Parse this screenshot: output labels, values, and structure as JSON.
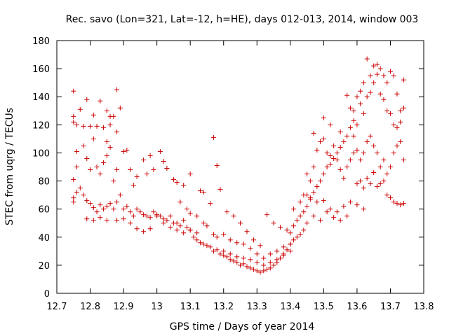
{
  "chart_data": {
    "type": "scatter",
    "title": "Rec. savo (Lon=321, Lat=-12, h=HE), days 012-013, 2014, window 003",
    "xlabel": "GPS time / Days of year 2014",
    "ylabel": "STEC from uqrg / TECUs",
    "xlim": [
      12.7,
      13.8
    ],
    "ylim": [
      0,
      180
    ],
    "x_ticks": [
      "12.7",
      "12.8",
      "12.9",
      "13",
      "13.1",
      "13.2",
      "13.3",
      "13.4",
      "13.5",
      "13.6",
      "13.7",
      "13.8"
    ],
    "y_ticks": [
      "0",
      "20",
      "40",
      "60",
      "80",
      "100",
      "120",
      "140",
      "160",
      "180"
    ],
    "grid": false,
    "marker": "plus",
    "marker_color": "#cc0000",
    "series": [
      {
        "name": "STEC",
        "points": [
          [
            12.75,
            144
          ],
          [
            12.75,
            126
          ],
          [
            12.75,
            122
          ],
          [
            12.76,
            120
          ],
          [
            12.76,
            101
          ],
          [
            12.77,
            131
          ],
          [
            12.78,
            119
          ],
          [
            12.79,
            138
          ],
          [
            12.8,
            119
          ],
          [
            12.81,
            127
          ],
          [
            12.82,
            119
          ],
          [
            12.83,
            137
          ],
          [
            12.84,
            118
          ],
          [
            12.85,
            130
          ],
          [
            12.86,
            120
          ],
          [
            12.87,
            126
          ],
          [
            12.88,
            145
          ],
          [
            12.88,
            115
          ],
          [
            12.89,
            132
          ],
          [
            12.86,
            126
          ],
          [
            12.85,
            108
          ],
          [
            12.75,
            81
          ],
          [
            12.76,
            90
          ],
          [
            12.78,
            105
          ],
          [
            12.79,
            96
          ],
          [
            12.8,
            88
          ],
          [
            12.81,
            110
          ],
          [
            12.82,
            90
          ],
          [
            12.83,
            85
          ],
          [
            12.84,
            93
          ],
          [
            12.85,
            98
          ],
          [
            12.86,
            104
          ],
          [
            12.87,
            80
          ],
          [
            12.88,
            88
          ],
          [
            12.9,
            101
          ],
          [
            12.91,
            102
          ],
          [
            12.92,
            88
          ],
          [
            12.93,
            77
          ],
          [
            12.94,
            83
          ],
          [
            12.96,
            95
          ],
          [
            12.97,
            85
          ],
          [
            12.98,
            98
          ],
          [
            12.99,
            88
          ],
          [
            13.01,
            101
          ],
          [
            13.02,
            94
          ],
          [
            13.03,
            89
          ],
          [
            13.05,
            81
          ],
          [
            13.06,
            79
          ],
          [
            13.08,
            77
          ],
          [
            13.1,
            85
          ],
          [
            13.13,
            73
          ],
          [
            12.75,
            68
          ],
          [
            12.75,
            65
          ],
          [
            12.76,
            72
          ],
          [
            12.77,
            75
          ],
          [
            12.78,
            70
          ],
          [
            12.79,
            66
          ],
          [
            12.8,
            64
          ],
          [
            12.81,
            61
          ],
          [
            12.82,
            58
          ],
          [
            12.83,
            63
          ],
          [
            12.84,
            60
          ],
          [
            12.85,
            62
          ],
          [
            12.86,
            64
          ],
          [
            12.87,
            60
          ],
          [
            12.88,
            65
          ],
          [
            12.89,
            70
          ],
          [
            12.9,
            60
          ],
          [
            12.91,
            62
          ],
          [
            12.92,
            58
          ],
          [
            12.93,
            55
          ],
          [
            12.94,
            60
          ],
          [
            12.95,
            58
          ],
          [
            12.96,
            56
          ],
          [
            12.97,
            55
          ],
          [
            12.98,
            54
          ],
          [
            12.99,
            58
          ],
          [
            13.0,
            56
          ],
          [
            13.01,
            55
          ],
          [
            13.02,
            53
          ],
          [
            13.03,
            52
          ],
          [
            13.04,
            55
          ],
          [
            13.05,
            50
          ],
          [
            13.06,
            50
          ],
          [
            13.07,
            48
          ],
          [
            13.08,
            52
          ],
          [
            13.09,
            47
          ],
          [
            13.1,
            45
          ],
          [
            12.79,
            53
          ],
          [
            12.81,
            52
          ],
          [
            12.83,
            54
          ],
          [
            12.85,
            52
          ],
          [
            12.88,
            52
          ],
          [
            12.9,
            53
          ],
          [
            12.92,
            50
          ],
          [
            12.94,
            46
          ],
          [
            12.96,
            44
          ],
          [
            12.98,
            46
          ],
          [
            13.0,
            55
          ],
          [
            13.02,
            50
          ],
          [
            13.04,
            47
          ],
          [
            13.06,
            45
          ],
          [
            13.08,
            43
          ],
          [
            13.1,
            45
          ],
          [
            13.12,
            43
          ],
          [
            13.07,
            65
          ],
          [
            13.09,
            60
          ],
          [
            13.1,
            57
          ],
          [
            13.12,
            55
          ],
          [
            13.14,
            50
          ],
          [
            13.15,
            48
          ],
          [
            13.17,
            42
          ],
          [
            13.18,
            40
          ],
          [
            13.2,
            42
          ],
          [
            13.22,
            38
          ],
          [
            13.24,
            36
          ],
          [
            13.26,
            35
          ],
          [
            13.28,
            32
          ],
          [
            13.3,
            28
          ],
          [
            13.32,
            25
          ],
          [
            13.34,
            28
          ],
          [
            13.36,
            30
          ],
          [
            13.38,
            33
          ],
          [
            13.4,
            35
          ],
          [
            13.11,
            40
          ],
          [
            13.12,
            38
          ],
          [
            13.13,
            36
          ],
          [
            13.14,
            35
          ],
          [
            13.15,
            34
          ],
          [
            13.16,
            33
          ],
          [
            13.17,
            30
          ],
          [
            13.18,
            31
          ],
          [
            13.19,
            28
          ],
          [
            13.2,
            27
          ],
          [
            13.21,
            26
          ],
          [
            13.22,
            24
          ],
          [
            13.23,
            23
          ],
          [
            13.24,
            22
          ],
          [
            13.25,
            20
          ],
          [
            13.26,
            21
          ],
          [
            13.27,
            19
          ],
          [
            13.28,
            18
          ],
          [
            13.29,
            17
          ],
          [
            13.3,
            16
          ],
          [
            13.31,
            15
          ],
          [
            13.32,
            16
          ],
          [
            13.33,
            17
          ],
          [
            13.34,
            18
          ],
          [
            13.35,
            20
          ],
          [
            13.36,
            22
          ],
          [
            13.37,
            25
          ],
          [
            13.38,
            28
          ],
          [
            13.39,
            31
          ],
          [
            13.4,
            35
          ],
          [
            13.41,
            38
          ],
          [
            13.42,
            40
          ],
          [
            13.43,
            42
          ],
          [
            13.44,
            45
          ],
          [
            13.14,
            72
          ],
          [
            13.16,
            64
          ],
          [
            13.17,
            111
          ],
          [
            13.18,
            91
          ],
          [
            13.19,
            74
          ],
          [
            13.21,
            58
          ],
          [
            13.23,
            55
          ],
          [
            13.25,
            50
          ],
          [
            13.27,
            44
          ],
          [
            13.29,
            38
          ],
          [
            13.31,
            34
          ],
          [
            13.33,
            56
          ],
          [
            13.35,
            50
          ],
          [
            13.37,
            47
          ],
          [
            13.39,
            45
          ],
          [
            13.41,
            60
          ],
          [
            13.43,
            65
          ],
          [
            13.45,
            70
          ],
          [
            13.2,
            30
          ],
          [
            13.22,
            28
          ],
          [
            13.24,
            26
          ],
          [
            13.26,
            25
          ],
          [
            13.28,
            24
          ],
          [
            13.3,
            22
          ],
          [
            13.32,
            20
          ],
          [
            13.34,
            22
          ],
          [
            13.36,
            24
          ],
          [
            13.38,
            27
          ],
          [
            13.4,
            30
          ],
          [
            13.4,
            43
          ],
          [
            13.41,
            48
          ],
          [
            13.42,
            52
          ],
          [
            13.43,
            55
          ],
          [
            13.44,
            58
          ],
          [
            13.45,
            62
          ],
          [
            13.46,
            67
          ],
          [
            13.47,
            72
          ],
          [
            13.48,
            76
          ],
          [
            13.49,
            80
          ],
          [
            13.5,
            85
          ],
          [
            13.51,
            90
          ],
          [
            13.52,
            92
          ],
          [
            13.53,
            96
          ],
          [
            13.54,
            100
          ],
          [
            13.55,
            104
          ],
          [
            13.56,
            108
          ],
          [
            13.57,
            112
          ],
          [
            13.58,
            118
          ],
          [
            13.59,
            123
          ],
          [
            13.45,
            85
          ],
          [
            13.46,
            80
          ],
          [
            13.47,
            90
          ],
          [
            13.48,
            102
          ],
          [
            13.49,
            108
          ],
          [
            13.5,
            110
          ],
          [
            13.51,
            100
          ],
          [
            13.52,
            98
          ],
          [
            13.53,
            105
          ],
          [
            13.54,
            95
          ],
          [
            13.55,
            88
          ],
          [
            13.56,
            82
          ],
          [
            13.57,
            90
          ],
          [
            13.58,
            95
          ],
          [
            13.59,
            100
          ],
          [
            13.44,
            70
          ],
          [
            13.46,
            68
          ],
          [
            13.48,
            65
          ],
          [
            13.5,
            66
          ],
          [
            13.52,
            60
          ],
          [
            13.54,
            58
          ],
          [
            13.56,
            62
          ],
          [
            13.58,
            65
          ],
          [
            13.6,
            63
          ],
          [
            13.62,
            60
          ],
          [
            13.45,
            50
          ],
          [
            13.47,
            55
          ],
          [
            13.49,
            52
          ],
          [
            13.51,
            58
          ],
          [
            13.53,
            54
          ],
          [
            13.55,
            52
          ],
          [
            13.57,
            55
          ],
          [
            13.47,
            114
          ],
          [
            13.5,
            125
          ],
          [
            13.52,
            120
          ],
          [
            13.55,
            115
          ],
          [
            13.57,
            141
          ],
          [
            13.59,
            130
          ],
          [
            13.6,
            140
          ],
          [
            13.61,
            144
          ],
          [
            13.62,
            150
          ],
          [
            13.63,
            167
          ],
          [
            13.64,
            155
          ],
          [
            13.65,
            162
          ],
          [
            13.66,
            163
          ],
          [
            13.67,
            160
          ],
          [
            13.68,
            155
          ],
          [
            13.69,
            150
          ],
          [
            13.7,
            158
          ],
          [
            13.71,
            155
          ],
          [
            13.72,
            142
          ],
          [
            13.73,
            130
          ],
          [
            13.74,
            152
          ],
          [
            13.58,
            132
          ],
          [
            13.59,
            112
          ],
          [
            13.6,
            120
          ],
          [
            13.61,
            135
          ],
          [
            13.62,
            128
          ],
          [
            13.63,
            140
          ],
          [
            13.64,
            143
          ],
          [
            13.65,
            150
          ],
          [
            13.66,
            156
          ],
          [
            13.67,
            142
          ],
          [
            13.68,
            138
          ],
          [
            13.69,
            130
          ],
          [
            13.7,
            128
          ],
          [
            13.71,
            120
          ],
          [
            13.72,
            118
          ],
          [
            13.73,
            122
          ],
          [
            13.74,
            132
          ],
          [
            13.6,
            102
          ],
          [
            13.61,
            95
          ],
          [
            13.62,
            100
          ],
          [
            13.63,
            108
          ],
          [
            13.64,
            112
          ],
          [
            13.65,
            105
          ],
          [
            13.66,
            100
          ],
          [
            13.67,
            90
          ],
          [
            13.68,
            95
          ],
          [
            13.69,
            85
          ],
          [
            13.7,
            90
          ],
          [
            13.71,
            100
          ],
          [
            13.72,
            105
          ],
          [
            13.73,
            108
          ],
          [
            13.74,
            95
          ],
          [
            13.6,
            78
          ],
          [
            13.61,
            80
          ],
          [
            13.62,
            75
          ],
          [
            13.63,
            82
          ],
          [
            13.64,
            78
          ],
          [
            13.65,
            86
          ],
          [
            13.66,
            76
          ],
          [
            13.67,
            78
          ],
          [
            13.68,
            80
          ],
          [
            13.69,
            70
          ],
          [
            13.7,
            68
          ],
          [
            13.71,
            65
          ],
          [
            13.72,
            64
          ],
          [
            13.73,
            63
          ],
          [
            13.74,
            64
          ]
        ]
      }
    ]
  }
}
